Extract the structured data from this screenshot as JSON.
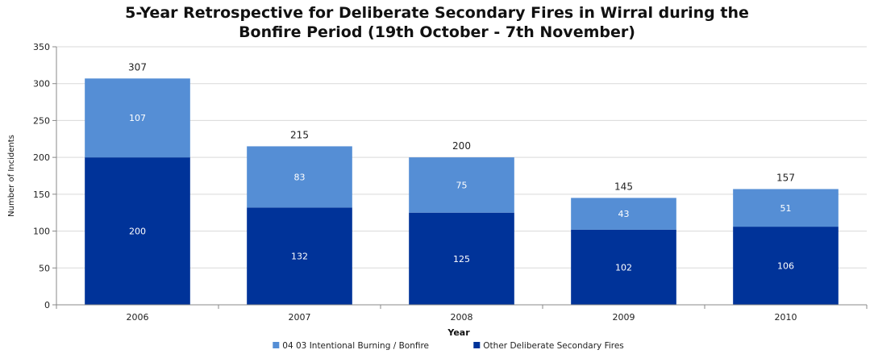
{
  "chart_data": {
    "type": "bar",
    "stacked": true,
    "title_line1": "5-Year Retrospective for Deliberate Secondary Fires in Wirral during the",
    "title_line2": "Bonfire Period (19th October - 7th November)",
    "xlabel": "Year",
    "ylabel": "Number of Incidents",
    "categories": [
      "2006",
      "2007",
      "2008",
      "2009",
      "2010"
    ],
    "ylim": [
      0,
      350
    ],
    "yticks": [
      0,
      50,
      100,
      150,
      200,
      250,
      300,
      350
    ],
    "grid": true,
    "legend_position": "bottom",
    "series": [
      {
        "name": "Other Deliberate Secondary Fires",
        "values": [
          200,
          132,
          125,
          102,
          106
        ],
        "color": "#003399"
      },
      {
        "name": "04 03 Intentional Burning / Bonfire",
        "values": [
          107,
          83,
          75,
          43,
          51
        ],
        "color": "#558ed5"
      }
    ],
    "totals": [
      307,
      215,
      200,
      145,
      157
    ],
    "legend_order": [
      "04 03 Intentional Burning / Bonfire",
      "Other Deliberate Secondary Fires"
    ]
  }
}
